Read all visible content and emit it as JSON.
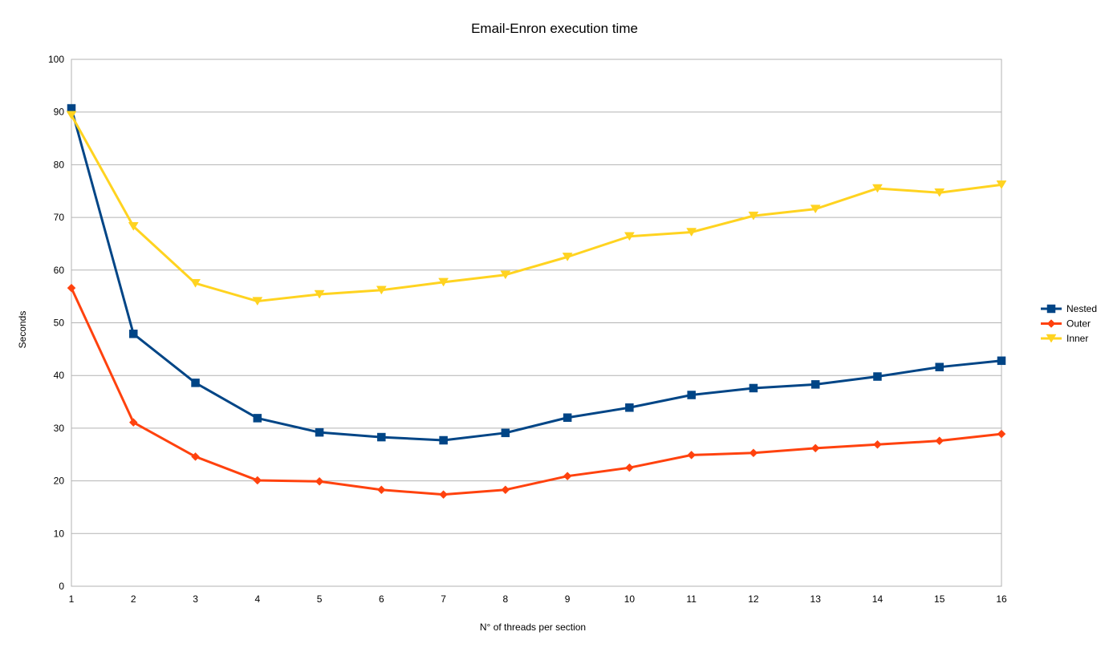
{
  "chart_data": {
    "type": "line",
    "title": "Email-Enron execution time",
    "xlabel": "N° of threads per section",
    "ylabel": "Seconds",
    "x": [
      1,
      2,
      3,
      4,
      5,
      6,
      7,
      8,
      9,
      10,
      11,
      12,
      13,
      14,
      15,
      16
    ],
    "ylim": [
      0,
      100
    ],
    "yticks": [
      0,
      10,
      20,
      30,
      40,
      50,
      60,
      70,
      80,
      90,
      100
    ],
    "grid": true,
    "legend_position": "right",
    "series": [
      {
        "name": "Nested",
        "color": "#004586",
        "marker": "square",
        "values": [
          90.7,
          47.9,
          38.6,
          31.9,
          29.2,
          28.3,
          27.7,
          29.1,
          32.0,
          33.9,
          36.3,
          37.6,
          38.3,
          39.8,
          41.6,
          42.8
        ]
      },
      {
        "name": "Outer",
        "color": "#ff420e",
        "marker": "diamond",
        "values": [
          56.6,
          31.1,
          24.6,
          20.1,
          19.9,
          18.3,
          17.4,
          18.3,
          20.9,
          22.5,
          24.9,
          25.3,
          26.2,
          26.9,
          27.6,
          28.9
        ]
      },
      {
        "name": "Inner",
        "color": "#ffd320",
        "marker": "triangle-down",
        "values": [
          89.4,
          68.3,
          57.5,
          54.1,
          55.4,
          56.2,
          57.7,
          59.1,
          62.5,
          66.4,
          67.2,
          70.3,
          71.6,
          75.5,
          74.7,
          76.2
        ]
      }
    ]
  }
}
